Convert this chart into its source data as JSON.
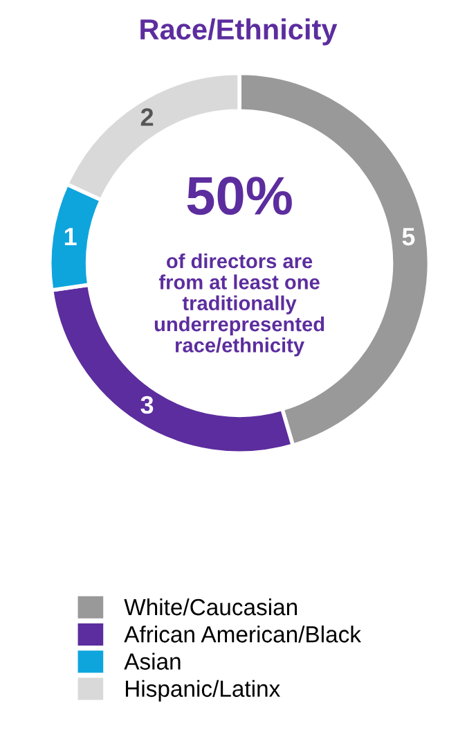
{
  "chart_data": {
    "type": "donut",
    "title": "Race/Ethnicity",
    "categories": [
      "White/Caucasian",
      "African American/Black",
      "Asian",
      "Hispanic/Latinx"
    ],
    "values": [
      5,
      3,
      1,
      2
    ],
    "colors": [
      "#999999",
      "#5c2d9e",
      "#0ea5dd",
      "#d9d9d9"
    ],
    "data_labels": true,
    "legend": "bottom",
    "annotations": [
      "50%",
      "of directors are\nfrom at least one\ntraditionally\nunderrepresented\nrace/ethnicity"
    ]
  }
}
